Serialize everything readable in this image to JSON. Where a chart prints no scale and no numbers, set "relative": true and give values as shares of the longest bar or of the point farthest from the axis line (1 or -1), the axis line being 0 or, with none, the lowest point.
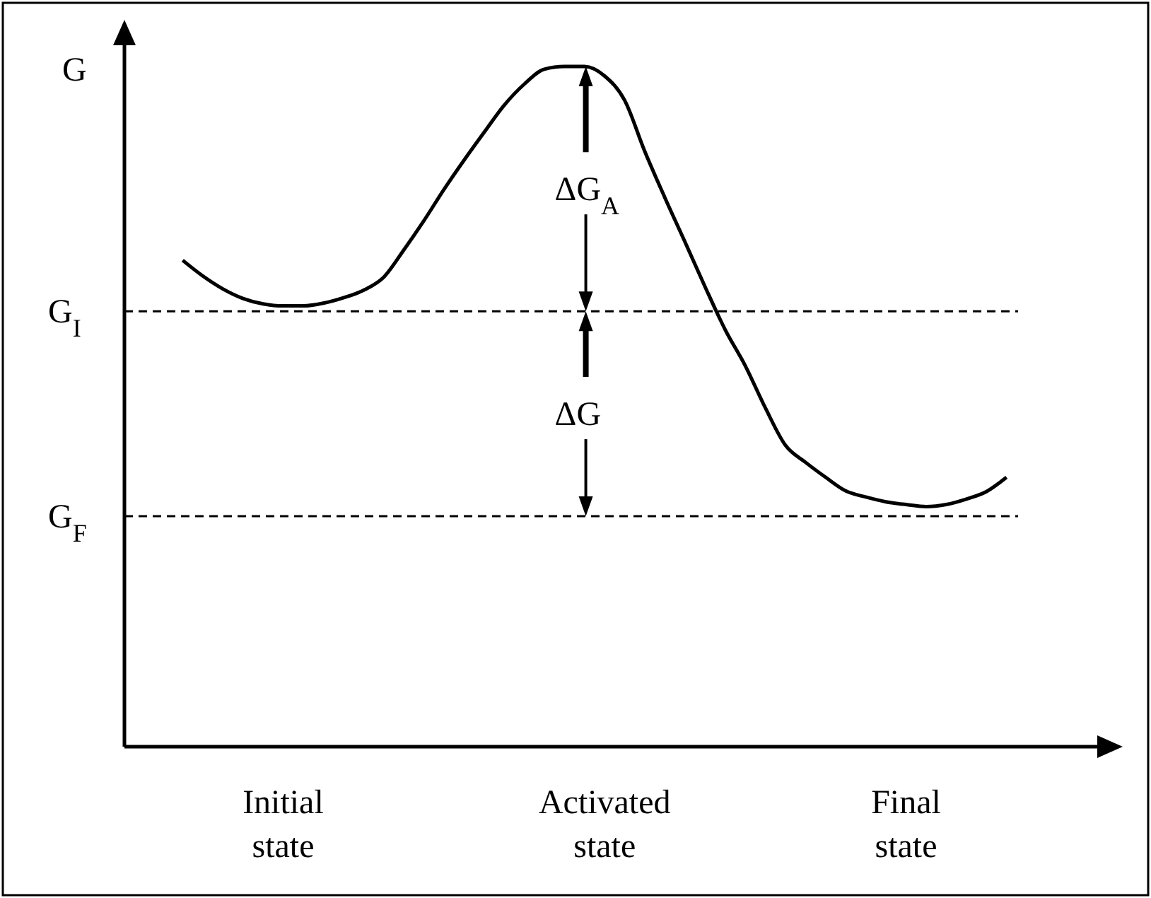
{
  "chart_data": {
    "type": "line",
    "relative": true,
    "ylabel": "G",
    "categories": [
      null,
      null,
      null,
      null,
      null,
      "Initial state",
      null,
      null,
      null,
      null,
      null,
      null,
      null,
      null,
      null,
      null,
      null,
      null,
      null,
      null,
      null,
      "Activated state",
      null,
      null,
      null,
      null,
      null,
      null,
      null,
      null,
      null,
      null,
      null,
      null,
      null,
      null,
      "Final state",
      null,
      null,
      null,
      null,
      null
    ],
    "series": [
      {
        "color": "#000000",
        "values": [
          0.715,
          0.692,
          0.673,
          0.659,
          0.651,
          0.648,
          0.648,
          0.652,
          0.66,
          0.671,
          0.69,
          0.73,
          0.773,
          0.819,
          0.862,
          0.903,
          0.943,
          0.974,
          0.996,
          1,
          1,
          0.986,
          0.95,
          0.875,
          0.807,
          0.742,
          0.676,
          0.613,
          0.56,
          0.498,
          0.443,
          0.418,
          0.396,
          0.376,
          0.367,
          0.36,
          0.356,
          0.353,
          0.356,
          0.364,
          0.375,
          0.396
        ]
      }
    ],
    "ref_lines": [
      {
        "axis": "y",
        "value": 0.64,
        "label": "G$_{I}$",
        "line_style": "dashed"
      },
      {
        "axis": "y",
        "value": 0.339,
        "label": "G$_{F}$",
        "line_style": "dashed"
      }
    ],
    "annotations": [
      "ΔG$_{A}$",
      "ΔG"
    ],
    "line_style": "solid"
  }
}
